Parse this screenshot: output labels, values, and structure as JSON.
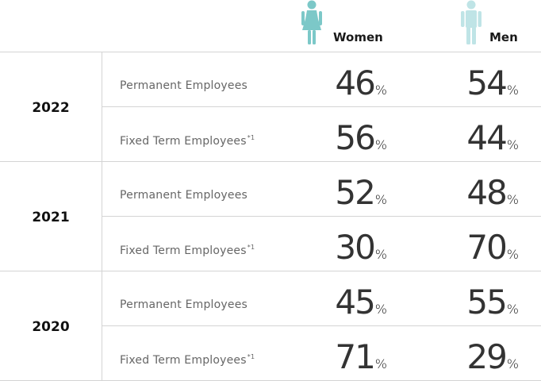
{
  "header": {
    "women_label": "Women",
    "men_label": "Men",
    "women_icon": "woman-icon",
    "men_icon": "man-icon"
  },
  "colors": {
    "women_icon": "#7cc8c8",
    "men_icon": "#bfe4e6",
    "divider": "#d4d4d4"
  },
  "unit": "%",
  "rows": [
    {
      "year": "2022",
      "items": [
        {
          "category": "Permanent Employees",
          "footnote": "",
          "women": "46",
          "men": "54"
        },
        {
          "category": "Fixed Term Employees",
          "footnote": "*1",
          "women": "56",
          "men": "44"
        }
      ]
    },
    {
      "year": "2021",
      "items": [
        {
          "category": "Permanent Employees",
          "footnote": "",
          "women": "52",
          "men": "48"
        },
        {
          "category": "Fixed Term Employees",
          "footnote": "*1",
          "women": "30",
          "men": "70"
        }
      ]
    },
    {
      "year": "2020",
      "items": [
        {
          "category": "Permanent Employees",
          "footnote": "",
          "women": "45",
          "men": "55"
        },
        {
          "category": "Fixed Term Employees",
          "footnote": "*1",
          "women": "71",
          "men": "29"
        }
      ]
    }
  ]
}
